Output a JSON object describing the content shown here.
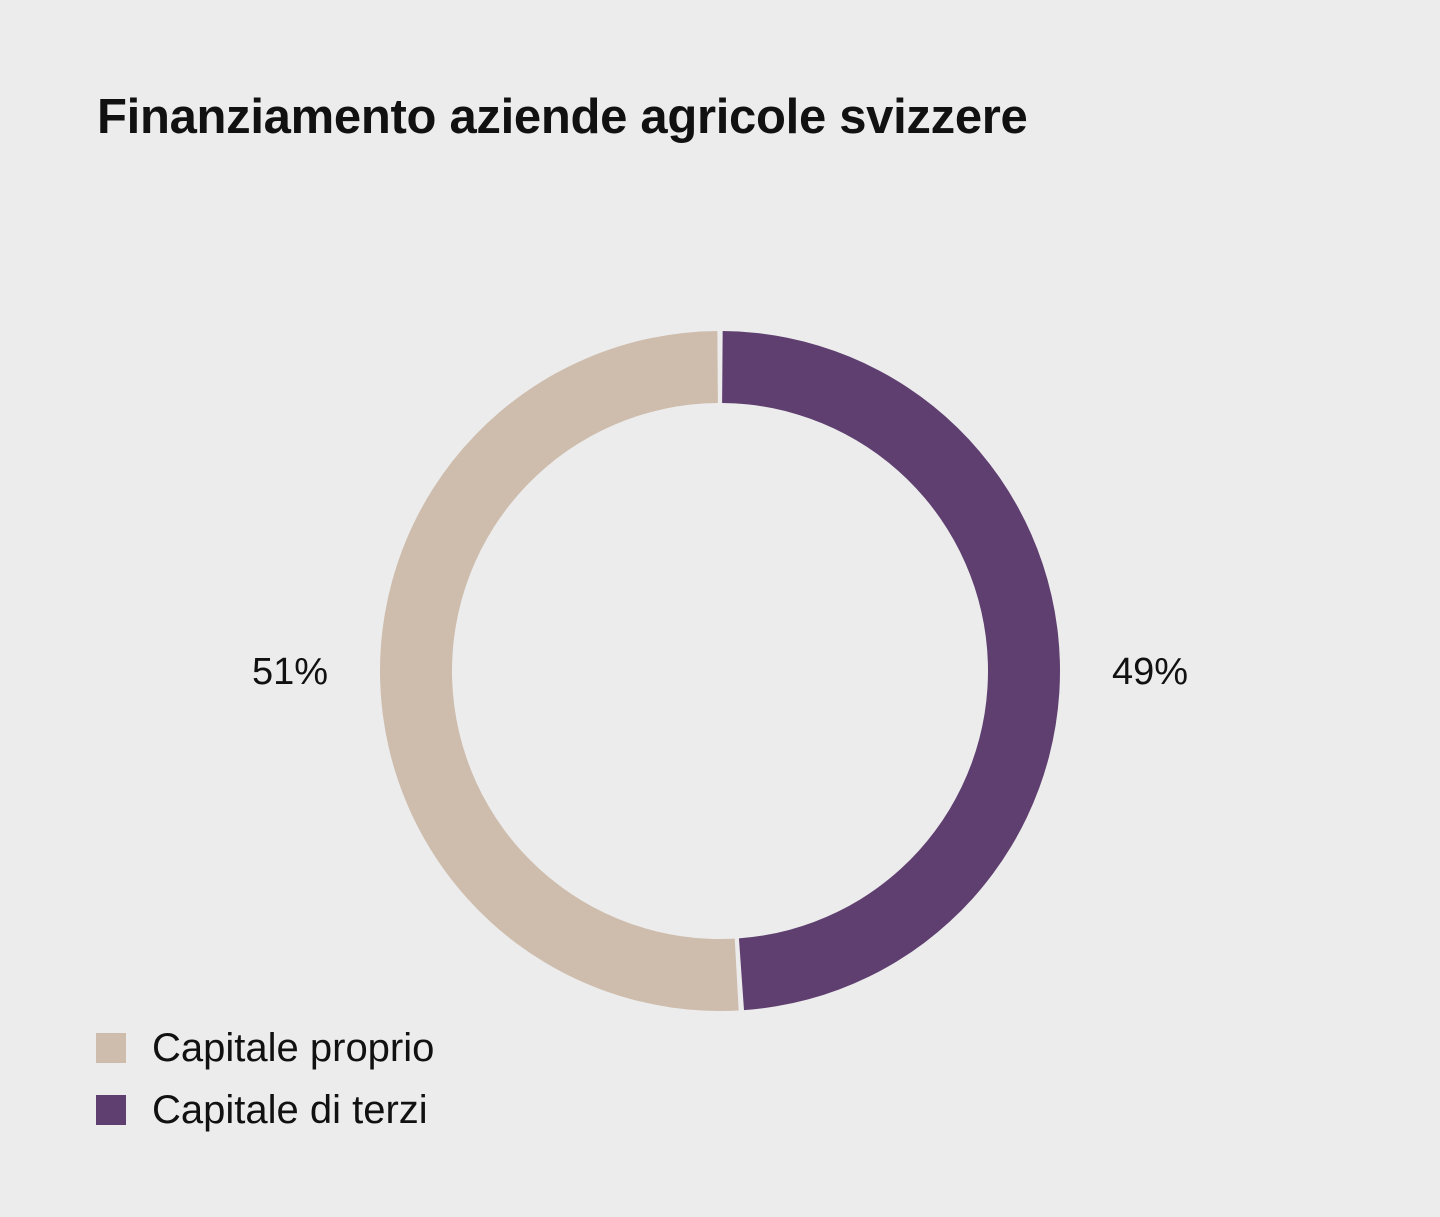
{
  "chart_data": {
    "type": "pie",
    "title": "Finanziamento aziende agricole svizzere",
    "donut": true,
    "categories": [
      "Capitale proprio",
      "Capitale di terzi"
    ],
    "values": [
      51,
      49
    ],
    "value_labels": [
      "51%",
      "49%"
    ],
    "colors": [
      "#cebdad",
      "#5f3f70"
    ],
    "legend_placement": "bottom-left"
  }
}
